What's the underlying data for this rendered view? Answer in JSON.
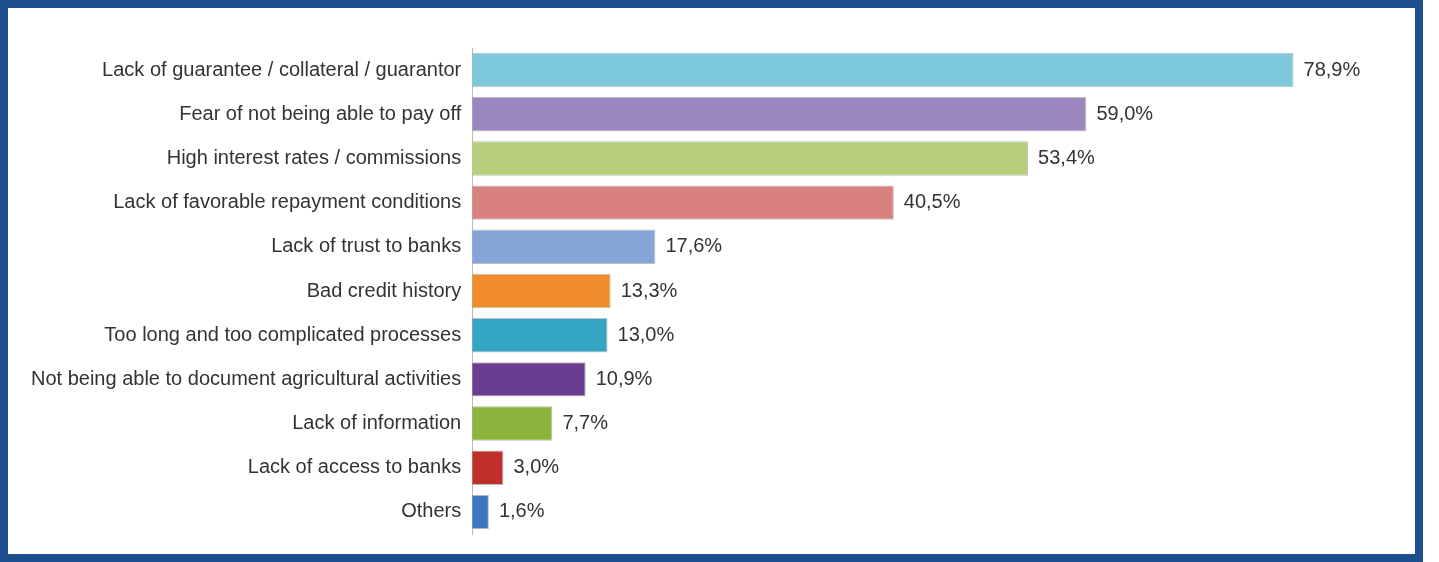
{
  "chart_data": {
    "type": "bar",
    "orientation": "horizontal",
    "categories": [
      "Lack of guarantee / collateral / guarantor",
      "Fear of not being able to pay off",
      "High interest rates / commissions",
      "Lack of favorable repayment conditions",
      "Lack of trust to banks",
      "Bad credit history",
      "Too long and too complicated processes",
      "Not being able to document agricultural activities",
      "Lack of information",
      "Lack of access to banks",
      "Others"
    ],
    "values": [
      78.9,
      59.0,
      53.4,
      40.5,
      17.6,
      13.3,
      13.0,
      10.9,
      7.7,
      3.0,
      1.6
    ],
    "value_labels": [
      "78,9%",
      "59,0%",
      "53,4%",
      "40,5%",
      "17,6%",
      "13,3%",
      "13,0%",
      "10,9%",
      "7,7%",
      "3,0%",
      "1,6%"
    ],
    "colors": [
      "#7ec8dc",
      "#9b86c0",
      "#b5cf7a",
      "#d98080",
      "#86a4d8",
      "#f08c2a",
      "#34a6c4",
      "#6a3d91",
      "#8ab43c",
      "#c0302b",
      "#3a78c0"
    ],
    "legend": false
  }
}
